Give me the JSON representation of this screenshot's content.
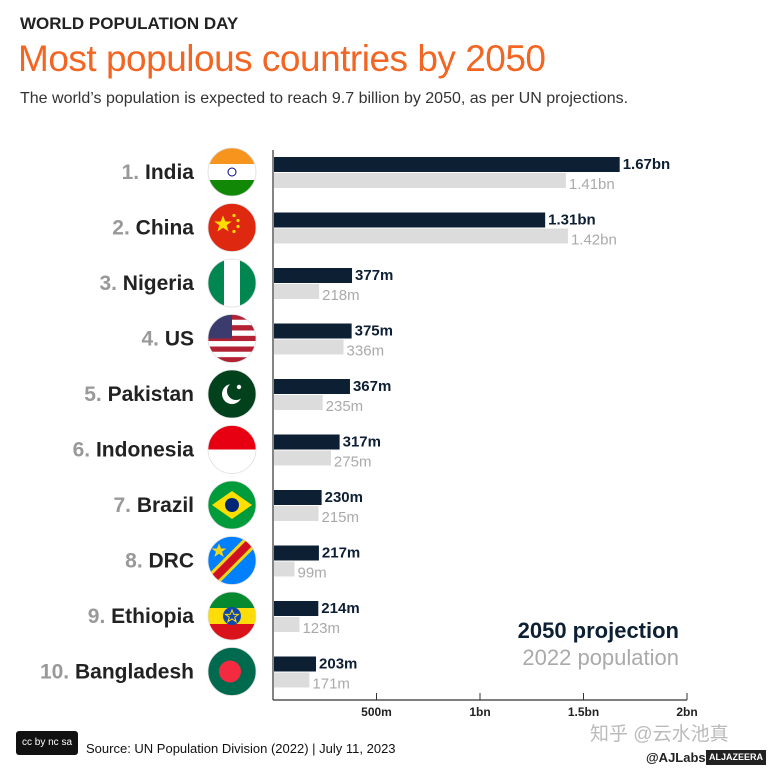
{
  "header": {
    "kicker": "WORLD POPULATION DAY",
    "title": "Most populous countries by 2050",
    "subtitle": "The world’s population is expected to reach 9.7 billion by 2050, as per UN projections."
  },
  "chart_data": {
    "type": "bar",
    "categories": [
      "1. India",
      "2. China",
      "3. Nigeria",
      "4. US",
      "5. Pakistan",
      "6. Indonesia",
      "7. Brazil",
      "8. DRC",
      "9. Ethiopia",
      "10. Bangladesh"
    ],
    "rank_labels": [
      "1.",
      "2.",
      "3.",
      "4.",
      "5.",
      "6.",
      "7.",
      "8.",
      "9.",
      "10."
    ],
    "names": [
      "India",
      "China",
      "Nigeria",
      "US",
      "Pakistan",
      "Indonesia",
      "Brazil",
      "DRC",
      "Ethiopia",
      "Bangladesh"
    ],
    "series": [
      {
        "name": "2050 projection",
        "values": [
          1670,
          1310,
          377,
          375,
          367,
          317,
          230,
          217,
          214,
          203
        ],
        "labels": [
          "1.67bn",
          "1.31bn",
          "377m",
          "375m",
          "367m",
          "317m",
          "230m",
          "217m",
          "214m",
          "203m"
        ],
        "color": "#0d1f33"
      },
      {
        "name": "2022 population",
        "values": [
          1410,
          1420,
          218,
          336,
          235,
          275,
          215,
          99,
          123,
          171
        ],
        "labels": [
          "1.41bn",
          "1.42bn",
          "218m",
          "336m",
          "235m",
          "275m",
          "215m",
          "99m",
          "123m",
          "171m"
        ],
        "color": "#dcdcdc"
      }
    ],
    "unit": "millions",
    "xlim": [
      0,
      2000
    ],
    "xticks": [
      500,
      1000,
      1500,
      2000
    ],
    "xtick_labels": [
      "500m",
      "1bn",
      "1.5bn",
      "2bn"
    ],
    "legend": "bottom-right",
    "grid": false
  },
  "flags": [
    "india-flag",
    "china-flag",
    "nigeria-flag",
    "us-flag",
    "pakistan-flag",
    "indonesia-flag",
    "brazil-flag",
    "drc-flag",
    "ethiopia-flag",
    "bangladesh-flag"
  ],
  "footer": {
    "license": "cc by nc sa",
    "source": "Source: UN Population Division (2022)  |  July 11, 2023",
    "handle": "@AJLabs",
    "brand": "ALJAZEERA",
    "watermark": "知乎 @云水池真"
  }
}
